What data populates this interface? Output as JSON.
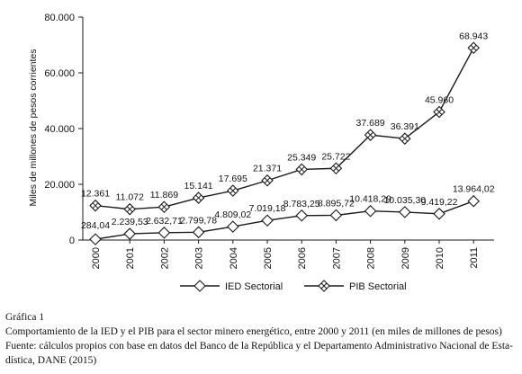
{
  "chart_data": {
    "type": "line",
    "ylabel": "Miles de millones de pesos corrientes",
    "xlabel": "",
    "ylim": [
      0,
      80000
    ],
    "yticks": [
      0,
      20000,
      40000,
      60000,
      80000
    ],
    "ytick_labels": [
      "0",
      "20.000",
      "40.000",
      "60.000",
      "80.000"
    ],
    "grid": false,
    "legend_position": "bottom",
    "categories": [
      "2000",
      "2001",
      "2002",
      "2003",
      "2004",
      "2005",
      "2006",
      "2007",
      "2008",
      "2009",
      "2010",
      "2011"
    ],
    "series": [
      {
        "name": "IED Sectorial",
        "marker": "diamond",
        "values": [
          284.04,
          2239.53,
          2632.71,
          2799.78,
          4809.02,
          7019.18,
          8783.25,
          8895.72,
          10418.29,
          10035.3,
          9419.22,
          13964.02
        ],
        "labels": [
          "284,04",
          "2.239,53",
          "2.632,71",
          "2.799,78",
          "4.809,02",
          "7.019,18",
          "8.783,25",
          "8.895,72",
          "10.418,29",
          "10.035,30",
          "9.419,22",
          "13.964,02"
        ]
      },
      {
        "name": "PIB Sectorial",
        "marker": "diamond-x",
        "values": [
          12361,
          11072,
          11869,
          15141,
          17695,
          21371,
          25349,
          25722,
          37689,
          36391,
          45960,
          68943
        ],
        "labels": [
          "12.361",
          "11.072",
          "11.869",
          "15.141",
          "17.695",
          "21.371",
          "25.349",
          "25.722",
          "37.689",
          "36.391",
          "45.960",
          "68.943"
        ]
      }
    ]
  },
  "caption": {
    "title": "Gráfica 1",
    "description": "Comportamiento de la IED y el PIB para el sector minero energético, entre 2000 y 2011 (en miles de millones de pesos)",
    "source_line1": "Fuente: cálculos propios con base en datos del Banco de la República y el Departamento Administrativo Nacional de Esta-",
    "source_line2": "dística, DANE (2015)"
  },
  "colors": {
    "line": "#1a1a1a",
    "marker_fill": "#ffffff"
  }
}
